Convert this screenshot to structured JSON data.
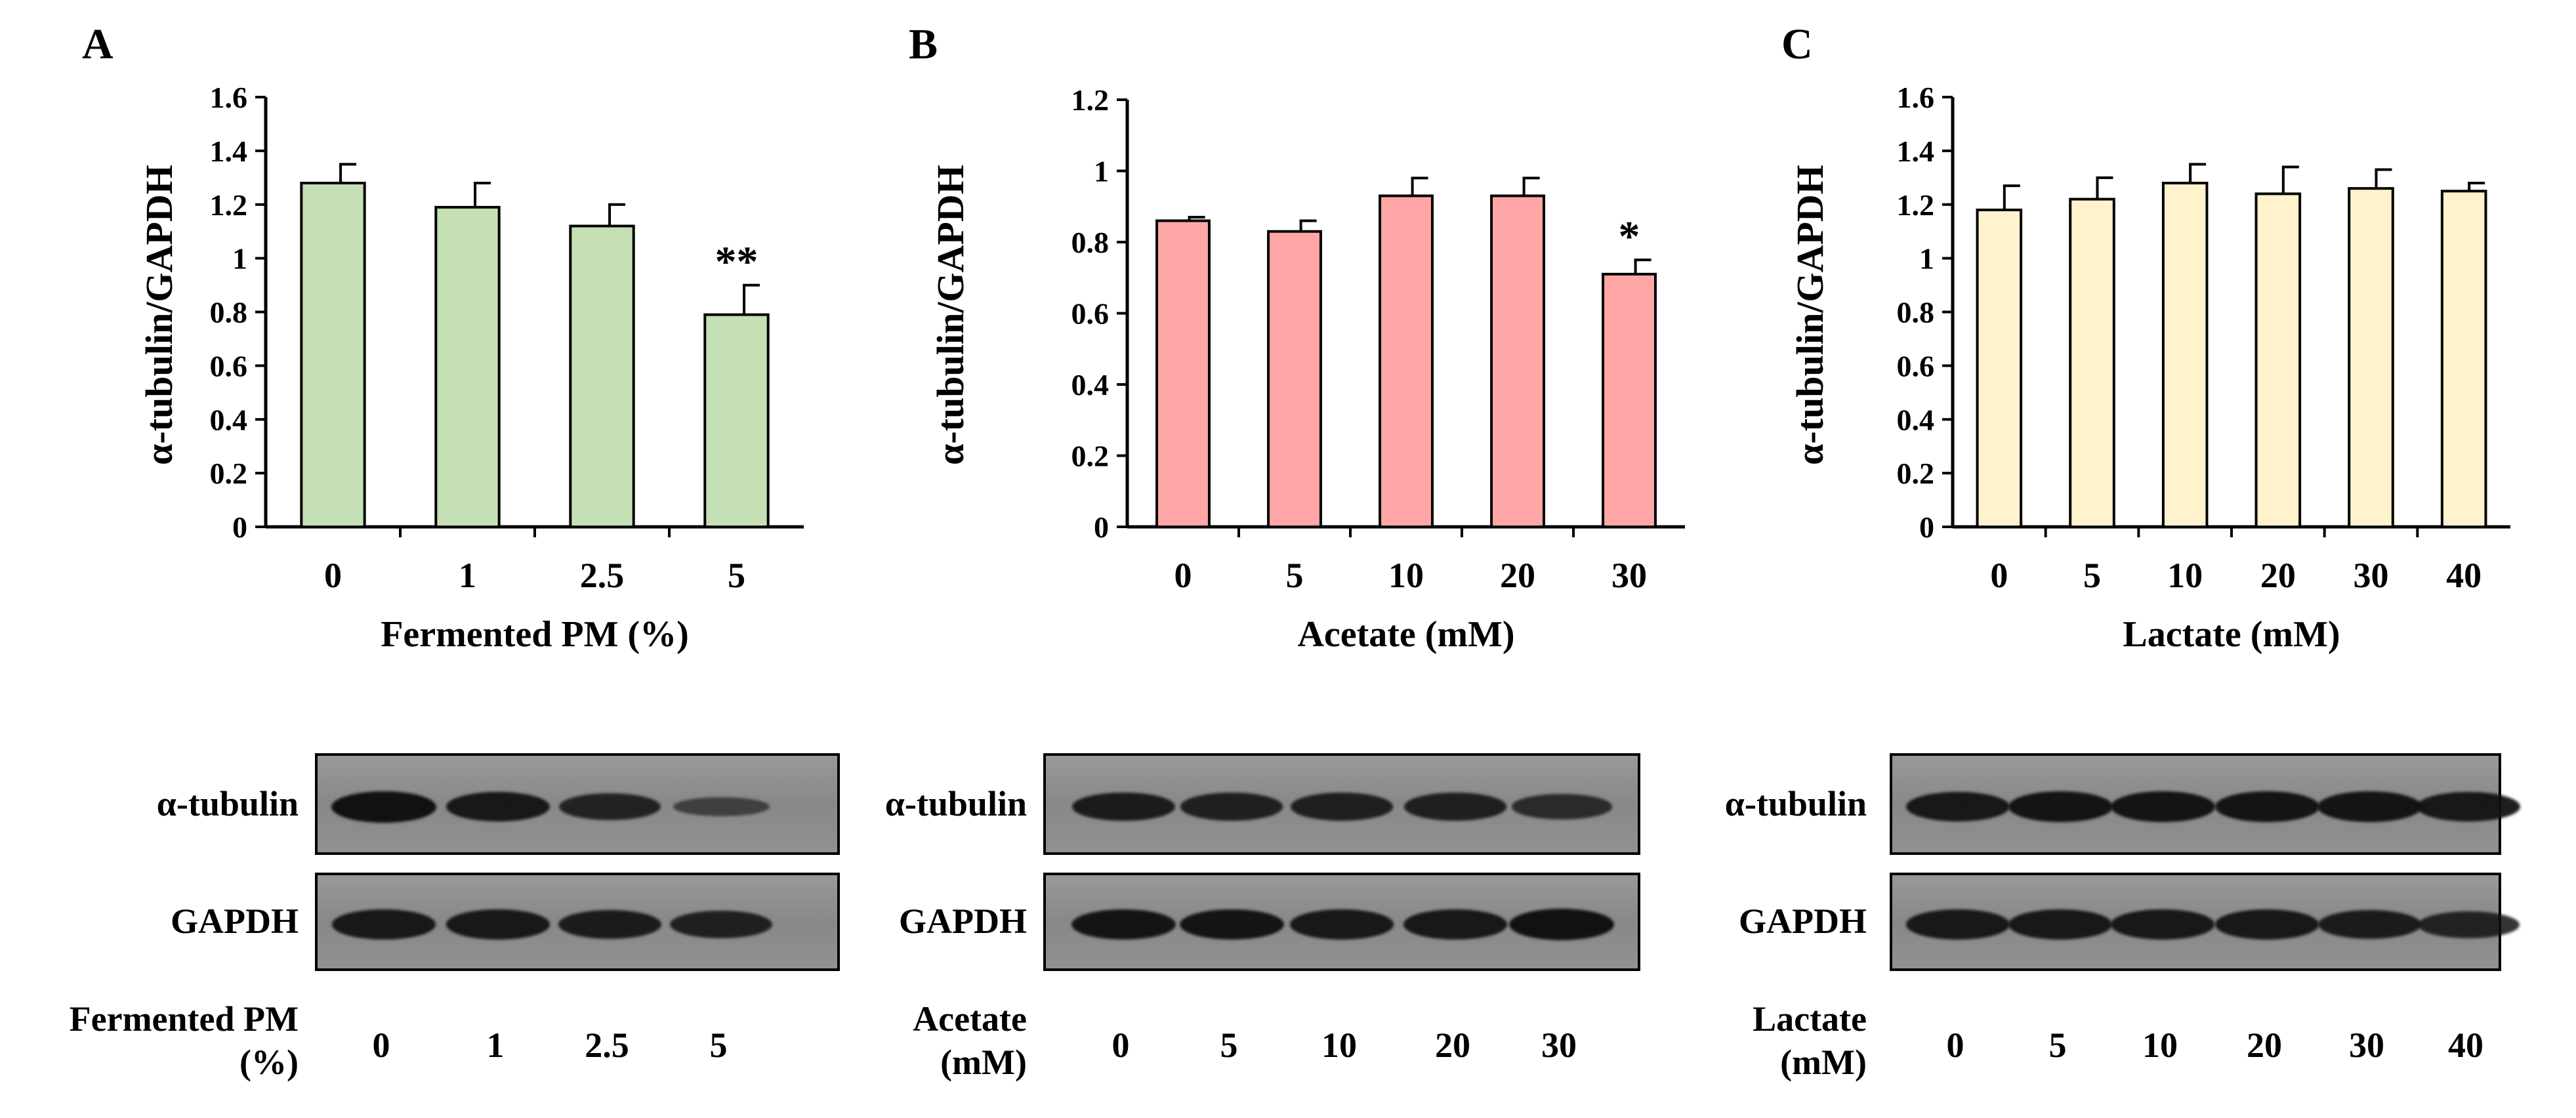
{
  "panels": [
    {
      "letter": "A",
      "chart_data": {
        "type": "bar",
        "ylabel": "α-tubulin/GAPDH",
        "xlabel": "Fermented PM (%)",
        "categories": [
          "0",
          "1",
          "2.5",
          "5"
        ],
        "values": [
          1.28,
          1.19,
          1.12,
          0.79
        ],
        "errors": [
          0.07,
          0.09,
          0.08,
          0.11
        ],
        "annotations": [
          "",
          "",
          "",
          "**"
        ],
        "ylim": [
          0,
          1.6
        ],
        "yticks": [
          "0",
          "0.2",
          "0.4",
          "0.6",
          "0.8",
          "1",
          "1.2",
          "1.4",
          "1.6"
        ],
        "bar_color": "#c5e0b4"
      },
      "blot": {
        "row1": "α-tubulin",
        "row2": "GAPDH",
        "condition": "Fermented PM",
        "unit": "(%)",
        "lanes": [
          "0",
          "1",
          "2.5",
          "5"
        ],
        "row1_intensity": [
          1.0,
          0.9,
          0.75,
          0.35
        ],
        "row2_intensity": [
          0.9,
          0.9,
          0.85,
          0.8
        ]
      }
    },
    {
      "letter": "B",
      "chart_data": {
        "type": "bar",
        "ylabel": "α-tubulin/GAPDH",
        "xlabel": "Acetate (mM)",
        "categories": [
          "0",
          "5",
          "10",
          "20",
          "30"
        ],
        "values": [
          0.86,
          0.83,
          0.93,
          0.93,
          0.71
        ],
        "errors": [
          0.01,
          0.03,
          0.05,
          0.05,
          0.04
        ],
        "annotations": [
          "",
          "",
          "",
          "",
          "*"
        ],
        "ylim": [
          0,
          1.2
        ],
        "yticks": [
          "0",
          "0.2",
          "0.4",
          "0.6",
          "0.8",
          "1",
          "1.2"
        ],
        "bar_color": "#ffa6a6"
      },
      "blot": {
        "row1": "α-tubulin",
        "row2": "GAPDH",
        "condition": "Acetate",
        "unit": "(mM)",
        "lanes": [
          "0",
          "5",
          "10",
          "20",
          "30"
        ],
        "row1_intensity": [
          0.85,
          0.8,
          0.8,
          0.8,
          0.65
        ],
        "row2_intensity": [
          0.95,
          0.95,
          0.9,
          0.9,
          1.0
        ]
      }
    },
    {
      "letter": "C",
      "chart_data": {
        "type": "bar",
        "ylabel": "α-tubulin/GAPDH",
        "xlabel": "Lactate (mM)",
        "categories": [
          "0",
          "5",
          "10",
          "20",
          "30",
          "40"
        ],
        "values": [
          1.18,
          1.22,
          1.28,
          1.24,
          1.26,
          1.25
        ],
        "errors": [
          0.09,
          0.08,
          0.07,
          0.1,
          0.07,
          0.03
        ],
        "annotations": [
          "",
          "",
          "",
          "",
          "",
          ""
        ],
        "ylim": [
          0,
          1.6
        ],
        "yticks": [
          "0",
          "0.2",
          "0.4",
          "0.6",
          "0.8",
          "1",
          "1.2",
          "1.4",
          "1.6"
        ],
        "bar_color": "#fff2cc"
      },
      "blot": {
        "row1": "α-tubulin",
        "row2": "GAPDH",
        "condition": "Lactate",
        "unit": "(mM)",
        "lanes": [
          "0",
          "5",
          "10",
          "20",
          "30",
          "40"
        ],
        "row1_intensity": [
          0.9,
          0.95,
          0.95,
          0.95,
          0.95,
          0.9
        ],
        "row2_intensity": [
          0.9,
          0.9,
          0.9,
          0.9,
          0.85,
          0.75
        ]
      }
    }
  ]
}
